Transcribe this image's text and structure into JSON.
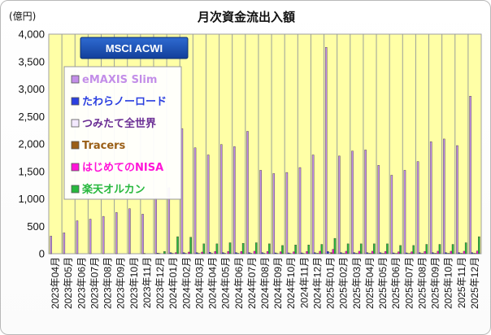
{
  "chart_data": {
    "type": "bar",
    "title": "月次資金流出入額",
    "unit_label": "(億円)",
    "badge": "MSCI ACWI",
    "ylim": [
      0,
      4000
    ],
    "yticks": [
      0,
      500,
      1000,
      1500,
      2000,
      2500,
      3000,
      3500,
      4000
    ],
    "ytick_labels": [
      "0",
      "500",
      "1,000",
      "1,500",
      "2,000",
      "2,500",
      "3,000",
      "3,500",
      "4,000"
    ],
    "grid": "vertical",
    "legend_position": "top-left",
    "categories": [
      "2023年04月",
      "2023年05月",
      "2023年06月",
      "2023年07月",
      "2023年08月",
      "2023年09月",
      "2023年10月",
      "2023年11月",
      "2023年12月",
      "2024年01月",
      "2024年02月",
      "2024年03月",
      "2024年04月",
      "2024年05月",
      "2024年06月",
      "2024年07月",
      "2024年08月",
      "2024年09月",
      "2024年10月",
      "2024年11月",
      "2024年12月",
      "2025年01月",
      "2025年02月",
      "2025年03月",
      "2025年04月",
      "2025年05月",
      "2025年06月",
      "2025年07月",
      "2025年08月",
      "2025年09月",
      "2025年10月",
      "2025年11月",
      "2025年12月"
    ],
    "series": [
      {
        "name": "eMAXIS Slim",
        "color": "#c38ee8",
        "values": [
          320,
          380,
          600,
          630,
          680,
          750,
          820,
          720,
          1020,
          1200,
          2280,
          1930,
          1800,
          1990,
          1950,
          2230,
          1520,
          1460,
          1480,
          1570,
          1800,
          3760,
          1780,
          1870,
          1890,
          1610,
          1430,
          1520,
          1680,
          2040,
          2090,
          1970,
          2870
        ]
      },
      {
        "name": "たわらノーロード",
        "color": "#2b3fe0",
        "values": [
          0,
          0,
          0,
          0,
          0,
          0,
          0,
          5,
          10,
          20,
          20,
          20,
          25,
          20,
          20,
          20,
          20,
          15,
          15,
          15,
          20,
          40,
          20,
          20,
          20,
          20,
          15,
          15,
          20,
          20,
          20,
          20,
          20
        ]
      },
      {
        "name": "つみたて全世界",
        "color": "#f3e9ff",
        "values": [
          0,
          0,
          0,
          0,
          0,
          0,
          0,
          0,
          5,
          10,
          10,
          10,
          10,
          10,
          10,
          10,
          10,
          5,
          5,
          5,
          10,
          20,
          10,
          10,
          10,
          10,
          5,
          5,
          10,
          10,
          10,
          10,
          10
        ]
      },
      {
        "name": "Tracers",
        "color": "#9a5e16",
        "values": [
          0,
          0,
          0,
          0,
          0,
          0,
          0,
          0,
          0,
          0,
          0,
          0,
          0,
          0,
          0,
          0,
          0,
          0,
          0,
          0,
          5,
          20,
          5,
          5,
          5,
          5,
          5,
          5,
          5,
          5,
          5,
          5,
          5
        ]
      },
      {
        "name": "はじめてのNISA",
        "color": "#ff14d8",
        "values": [
          0,
          0,
          0,
          0,
          0,
          0,
          0,
          0,
          0,
          20,
          30,
          30,
          40,
          40,
          40,
          45,
          40,
          35,
          35,
          40,
          45,
          80,
          45,
          45,
          45,
          40,
          35,
          35,
          40,
          45,
          45,
          45,
          50
        ]
      },
      {
        "name": "楽天オルカン",
        "color": "#27b83d",
        "values": [
          0,
          0,
          0,
          0,
          0,
          0,
          0,
          0,
          40,
          310,
          300,
          180,
          180,
          200,
          190,
          200,
          180,
          150,
          160,
          160,
          170,
          280,
          180,
          180,
          180,
          180,
          150,
          150,
          170,
          170,
          170,
          200,
          310
        ]
      }
    ]
  }
}
